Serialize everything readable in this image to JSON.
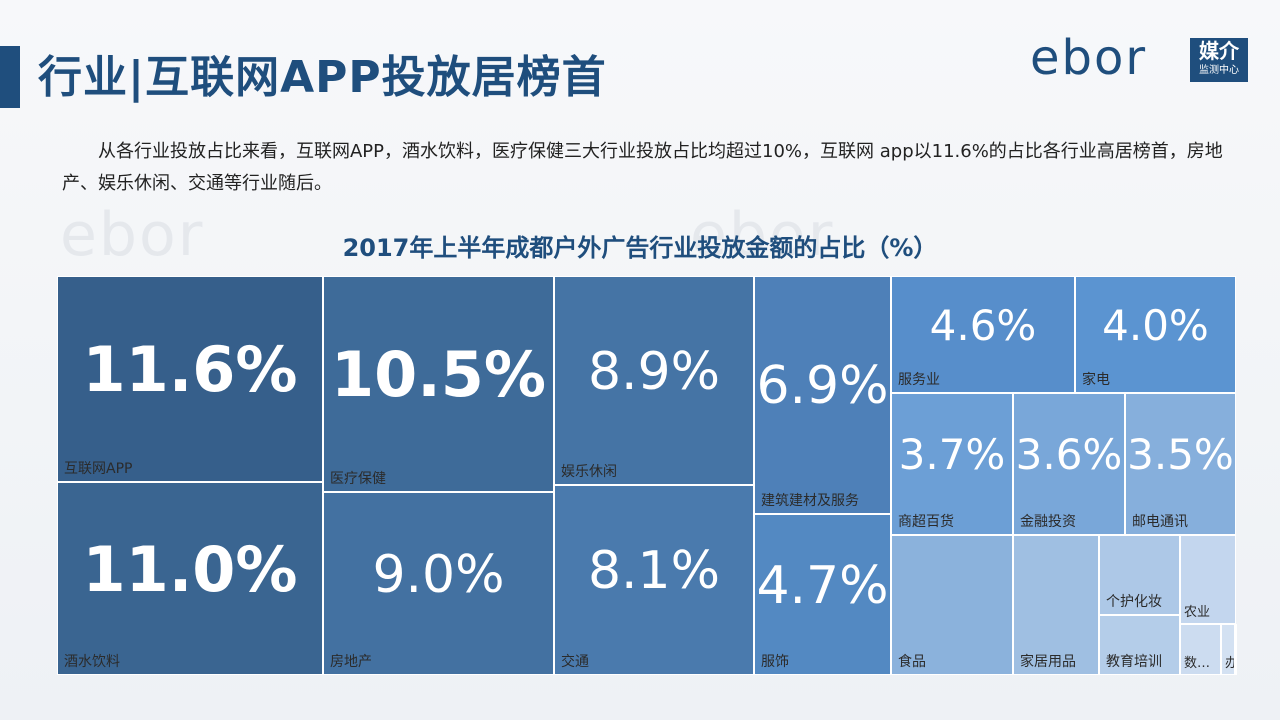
{
  "header": {
    "title": "行业|互联网APP投放居榜首",
    "accent_color": "#1f4e7d"
  },
  "logo": {
    "word": "ebor",
    "main": "媒介",
    "sub": "监测中心"
  },
  "body": {
    "text": "从各行业投放占比来看，互联网APP，酒水饮料，医疗保健三大行业投放占比均超过10%，互联网 app以11.6%的占比各行业高居榜首，房地产、娱乐休闲、交通等行业随后。"
  },
  "chart_data": {
    "type": "treemap",
    "title": "2017年上半年成都户外广告行业投放金额的占比（%）",
    "items": [
      {
        "category": "互联网APP",
        "value": 11.6,
        "label": "11.6%",
        "color": "#365f8b"
      },
      {
        "category": "酒水饮料",
        "value": 11.0,
        "label": "11.0%",
        "color": "#3a6591"
      },
      {
        "category": "医疗保健",
        "value": 10.5,
        "label": "10.5%",
        "color": "#3e6b99"
      },
      {
        "category": "房地产",
        "value": 9.0,
        "label": "9.0%",
        "color": "#4371a1"
      },
      {
        "category": "娱乐休闲",
        "value": 8.9,
        "label": "8.9%",
        "color": "#4574a5"
      },
      {
        "category": "交通",
        "value": 8.1,
        "label": "8.1%",
        "color": "#4a7aad"
      },
      {
        "category": "建筑建材及服务",
        "value": 6.9,
        "label": "6.9%",
        "color": "#4e80b8"
      },
      {
        "category": "服饰",
        "value": 4.7,
        "label": "4.7%",
        "color": "#5389c2"
      },
      {
        "category": "服务业",
        "value": 4.6,
        "label": "4.6%",
        "color": "#578ecb"
      },
      {
        "category": "家电",
        "value": 4.0,
        "label": "4.0%",
        "color": "#5b94d1"
      },
      {
        "category": "商超百货",
        "value": 3.7,
        "label": "3.7%",
        "color": "#6c9fd6"
      },
      {
        "category": "金融投资",
        "value": 3.6,
        "label": "3.6%",
        "color": "#79a7d9"
      },
      {
        "category": "邮电通讯",
        "value": 3.5,
        "label": "3.5%",
        "color": "#86afdc"
      },
      {
        "category": "食品",
        "value": null,
        "label": "",
        "color": "#8bb2dc"
      },
      {
        "category": "家居用品",
        "value": null,
        "label": "",
        "color": "#9fbfe2"
      },
      {
        "category": "个护化妆",
        "value": null,
        "label": "",
        "color": "#adc8e7"
      },
      {
        "category": "教育培训",
        "value": null,
        "label": "",
        "color": "#b4cde9"
      },
      {
        "category": "农业",
        "value": null,
        "label": "",
        "color": "#c3d6ee"
      },
      {
        "category": "数…",
        "value": null,
        "label": "",
        "color": "#ccdcf0"
      },
      {
        "category": "办",
        "value": null,
        "label": "",
        "color": "#d3e1f2"
      },
      {
        "category": "",
        "value": null,
        "label": "",
        "color": "#dbe6f4"
      }
    ]
  }
}
